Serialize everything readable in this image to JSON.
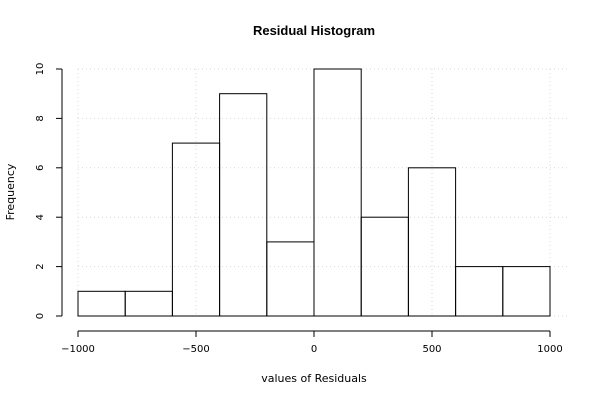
{
  "chart_data": {
    "type": "bar",
    "title": "Residual Histogram",
    "xlabel": "values of Residuals",
    "ylabel": "Frequency",
    "bins": [
      {
        "from": -1000,
        "to": -800,
        "count": 1
      },
      {
        "from": -800,
        "to": -600,
        "count": 1
      },
      {
        "from": -600,
        "to": -400,
        "count": 7
      },
      {
        "from": -400,
        "to": -200,
        "count": 9
      },
      {
        "from": -200,
        "to": 0,
        "count": 3
      },
      {
        "from": 0,
        "to": 200,
        "count": 10
      },
      {
        "from": 200,
        "to": 400,
        "count": 4
      },
      {
        "from": 400,
        "to": 600,
        "count": 6
      },
      {
        "from": 600,
        "to": 800,
        "count": 2
      },
      {
        "from": 800,
        "to": 1000,
        "count": 2
      }
    ],
    "xlim": [
      -1000,
      1000
    ],
    "ylim": [
      0,
      10
    ],
    "x_ticks": [
      -1000,
      -500,
      0,
      500,
      1000
    ],
    "x_tick_labels": [
      "−1000",
      "−500",
      "0",
      "500",
      "1000"
    ],
    "y_ticks": [
      0,
      2,
      4,
      6,
      8,
      10
    ],
    "y_tick_labels": [
      "0",
      "2",
      "4",
      "6",
      "8",
      "10"
    ],
    "grid": true
  }
}
